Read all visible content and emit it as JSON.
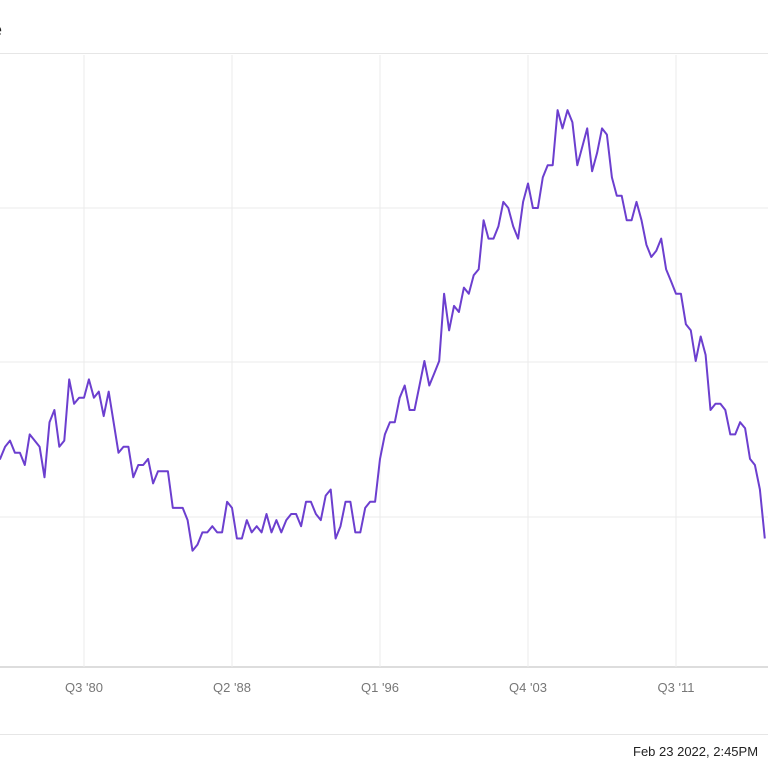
{
  "header": {
    "title_fragment": "e"
  },
  "footer": {
    "timestamp": "Feb 23 2022, 2:45PM"
  },
  "colors": {
    "line": "#6c3fcf",
    "grid": "#ebebeb",
    "axis": "#bbbbbb"
  },
  "chart_data": {
    "type": "line",
    "title": "",
    "xlabel": "",
    "ylabel": "",
    "grid": true,
    "x_tick_labels": [
      "Q3 '80",
      "Q2 '88",
      "Q1 '96",
      "Q4 '03",
      "Q3 '11"
    ],
    "x_range_quarters": [
      -38,
      138
    ],
    "y_range": [
      0,
      100
    ],
    "x_unit": "quarter index from Q3 '80",
    "series": [
      {
        "values": [
          [
            -38,
            27
          ],
          [
            -37,
            35
          ],
          [
            -36,
            40
          ],
          [
            -35,
            41
          ],
          [
            -34,
            36
          ],
          [
            -33,
            40
          ],
          [
            -32,
            36
          ],
          [
            -31,
            31
          ],
          [
            -30,
            29
          ],
          [
            -29,
            32
          ],
          [
            -28,
            37
          ],
          [
            -27,
            40
          ],
          [
            -26,
            39
          ],
          [
            -25,
            38
          ],
          [
            -24,
            46
          ],
          [
            -23,
            43
          ],
          [
            -22,
            42
          ],
          [
            -21,
            36
          ],
          [
            -20,
            37
          ],
          [
            -19,
            33
          ],
          [
            -18,
            35
          ],
          [
            -17,
            34
          ],
          [
            -16,
            36
          ],
          [
            -15,
            37
          ],
          [
            -14,
            35
          ],
          [
            -13,
            35
          ],
          [
            -12,
            33
          ],
          [
            -11,
            38
          ],
          [
            -10,
            37
          ],
          [
            -9,
            36
          ],
          [
            -8,
            31
          ],
          [
            -7,
            40
          ],
          [
            -6,
            42
          ],
          [
            -5,
            36
          ],
          [
            -4,
            37
          ],
          [
            -3,
            47
          ],
          [
            -2,
            43
          ],
          [
            -1,
            44
          ],
          [
            0,
            44
          ],
          [
            1,
            47
          ],
          [
            2,
            44
          ],
          [
            3,
            45
          ],
          [
            4,
            41
          ],
          [
            5,
            45
          ],
          [
            6,
            40
          ],
          [
            7,
            35
          ],
          [
            8,
            36
          ],
          [
            9,
            36
          ],
          [
            10,
            31
          ],
          [
            11,
            33
          ],
          [
            12,
            33
          ],
          [
            13,
            34
          ],
          [
            14,
            30
          ],
          [
            15,
            32
          ],
          [
            16,
            32
          ],
          [
            17,
            32
          ],
          [
            18,
            26
          ],
          [
            19,
            26
          ],
          [
            20,
            26
          ],
          [
            21,
            24
          ],
          [
            22,
            19
          ],
          [
            23,
            20
          ],
          [
            24,
            22
          ],
          [
            25,
            22
          ],
          [
            26,
            23
          ],
          [
            27,
            22
          ],
          [
            28,
            22
          ],
          [
            29,
            27
          ],
          [
            30,
            26
          ],
          [
            31,
            21
          ],
          [
            32,
            21
          ],
          [
            33,
            24
          ],
          [
            34,
            22
          ],
          [
            35,
            23
          ],
          [
            36,
            22
          ],
          [
            37,
            25
          ],
          [
            38,
            22
          ],
          [
            39,
            24
          ],
          [
            40,
            22
          ],
          [
            41,
            24
          ],
          [
            42,
            25
          ],
          [
            43,
            25
          ],
          [
            44,
            23
          ],
          [
            45,
            27
          ],
          [
            46,
            27
          ],
          [
            47,
            25
          ],
          [
            48,
            24
          ],
          [
            49,
            28
          ],
          [
            50,
            29
          ],
          [
            51,
            21
          ],
          [
            52,
            23
          ],
          [
            53,
            27
          ],
          [
            54,
            27
          ],
          [
            55,
            22
          ],
          [
            56,
            22
          ],
          [
            57,
            26
          ],
          [
            58,
            27
          ],
          [
            59,
            27
          ],
          [
            60,
            34
          ],
          [
            61,
            38
          ],
          [
            62,
            40
          ],
          [
            63,
            40
          ],
          [
            64,
            44
          ],
          [
            65,
            46
          ],
          [
            66,
            42
          ],
          [
            67,
            42
          ],
          [
            68,
            46
          ],
          [
            69,
            50
          ],
          [
            70,
            46
          ],
          [
            71,
            48
          ],
          [
            72,
            50
          ],
          [
            73,
            61
          ],
          [
            74,
            55
          ],
          [
            75,
            59
          ],
          [
            76,
            58
          ],
          [
            77,
            62
          ],
          [
            78,
            61
          ],
          [
            79,
            64
          ],
          [
            80,
            65
          ],
          [
            81,
            73
          ],
          [
            82,
            70
          ],
          [
            83,
            70
          ],
          [
            84,
            72
          ],
          [
            85,
            76
          ],
          [
            86,
            75
          ],
          [
            87,
            72
          ],
          [
            88,
            70
          ],
          [
            89,
            76
          ],
          [
            90,
            79
          ],
          [
            91,
            75
          ],
          [
            92,
            75
          ],
          [
            93,
            80
          ],
          [
            94,
            82
          ],
          [
            95,
            82
          ],
          [
            96,
            91
          ],
          [
            97,
            88
          ],
          [
            98,
            91
          ],
          [
            99,
            89
          ],
          [
            100,
            82
          ],
          [
            101,
            85
          ],
          [
            102,
            88
          ],
          [
            103,
            81
          ],
          [
            104,
            84
          ],
          [
            105,
            88
          ],
          [
            106,
            87
          ],
          [
            107,
            80
          ],
          [
            108,
            77
          ],
          [
            109,
            77
          ],
          [
            110,
            73
          ],
          [
            111,
            73
          ],
          [
            112,
            76
          ],
          [
            113,
            73
          ],
          [
            114,
            69
          ],
          [
            115,
            67
          ],
          [
            116,
            68
          ],
          [
            117,
            70
          ],
          [
            118,
            65
          ],
          [
            119,
            63
          ],
          [
            120,
            61
          ],
          [
            121,
            61
          ],
          [
            122,
            56
          ],
          [
            123,
            55
          ],
          [
            124,
            50
          ],
          [
            125,
            54
          ],
          [
            126,
            51
          ],
          [
            127,
            42
          ],
          [
            128,
            43
          ],
          [
            129,
            43
          ],
          [
            130,
            42
          ],
          [
            131,
            38
          ],
          [
            132,
            38
          ],
          [
            133,
            40
          ],
          [
            134,
            39
          ],
          [
            135,
            34
          ],
          [
            136,
            33
          ],
          [
            137,
            29
          ],
          [
            138,
            21
          ]
        ]
      }
    ]
  }
}
